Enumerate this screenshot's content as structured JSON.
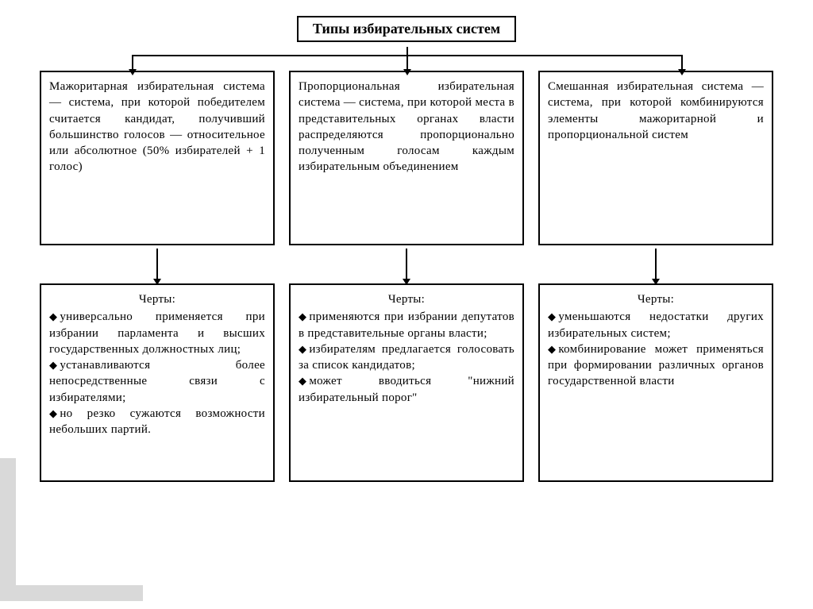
{
  "title": "Типы избирательных систем",
  "colors": {
    "border": "#000000",
    "background": "#ffffff",
    "deco": "#d9d9d9"
  },
  "layout": {
    "type": "tree",
    "columns": 3,
    "rows": 2
  },
  "columns": [
    {
      "definition": "Мажоритарная избирательная система — система, при которой победителем считается кандидат, получивший большинство голосов — относительное или абсолютное (50% избирателей + 1 голос)",
      "features_title": "Черты:",
      "features": [
        "универсально применяется при избрании парламента и высших государственных должностных лиц;",
        "устанавливаются более непосредственные связи с избирателями;",
        "но резко сужаются возможности небольших партий."
      ]
    },
    {
      "definition": "Пропорциональная избирательная система — система, при которой места в представительных органах власти распределяются пропорционально полученным голосам каждым избирательным объединением",
      "features_title": "Черты:",
      "features": [
        "применяются при избрании депутатов в представительные органы власти;",
        "избирателям предлагается голосовать за список кандидатов;",
        "может вводиться \"нижний избирательный порог\""
      ]
    },
    {
      "definition": "Смешанная избирательная система — система, при которой комбинируются элементы мажоритарной и пропорциональной систем",
      "features_title": "Черты:",
      "features": [
        "уменьшаются недостатки других избирательных систем;",
        "комбинирование может применяться при формировании различных органов государственной власти"
      ]
    }
  ],
  "bullet_glyph": "◆"
}
